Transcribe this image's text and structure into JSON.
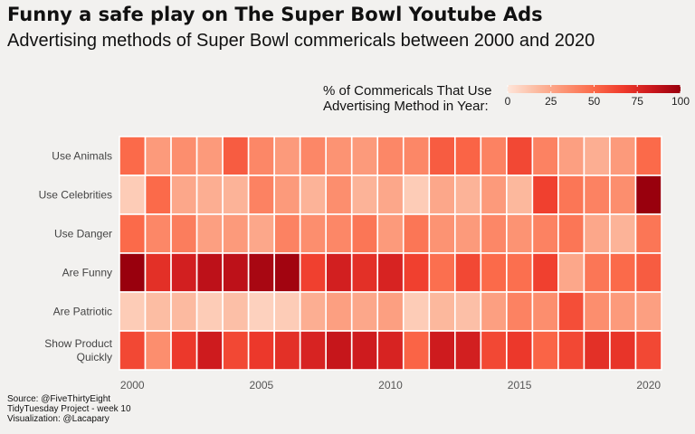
{
  "title": "Funny a safe play on The Super Bowl Youtube Ads",
  "subtitle": "Advertising methods of Super Bowl commericals between 2000 and 2020",
  "legend": {
    "title_line1": "% of Commericals That Use",
    "title_line2": "Advertising Method in Year:",
    "ticks": [
      0,
      25,
      50,
      75,
      100
    ],
    "colors": [
      "#fee5d9",
      "#fcbba1",
      "#fc9272",
      "#fb6a4a",
      "#ef3b2c",
      "#cb181d",
      "#99000d"
    ]
  },
  "caption": {
    "line1": "Source: @FiveThirtyEight",
    "line2": "TidyTuesday Project - week 10",
    "line3": "Visualization: @Lacapary"
  },
  "chart_data": {
    "type": "heatmap",
    "x": [
      2000,
      2001,
      2002,
      2003,
      2004,
      2005,
      2006,
      2007,
      2008,
      2009,
      2010,
      2011,
      2012,
      2013,
      2014,
      2015,
      2016,
      2017,
      2018,
      2019,
      2020
    ],
    "x_ticks": [
      2000,
      2005,
      2010,
      2015,
      2020
    ],
    "y": [
      "Use Animals",
      "Use Celebrities",
      "Use Danger",
      "Are Funny",
      "Are Patriotic",
      "Show Product Quickly"
    ],
    "y_display": [
      "Use Animals",
      "Use Celebrities",
      "Use Danger",
      "Are Funny",
      "Are Patriotic",
      "Show Product\nQuickly"
    ],
    "value_range": [
      0,
      100
    ],
    "values": [
      [
        50,
        30,
        35,
        30,
        55,
        38,
        30,
        38,
        33,
        30,
        38,
        38,
        55,
        52,
        40,
        62,
        40,
        28,
        22,
        30,
        50
      ],
      [
        10,
        50,
        25,
        22,
        20,
        40,
        30,
        20,
        35,
        20,
        25,
        10,
        25,
        20,
        30,
        18,
        65,
        45,
        40,
        35,
        100
      ],
      [
        50,
        38,
        42,
        28,
        30,
        25,
        40,
        35,
        38,
        45,
        30,
        45,
        33,
        30,
        38,
        33,
        40,
        45,
        25,
        20,
        45
      ],
      [
        100,
        72,
        80,
        88,
        88,
        95,
        97,
        65,
        80,
        72,
        78,
        65,
        48,
        62,
        50,
        48,
        65,
        25,
        45,
        50,
        55
      ],
      [
        10,
        16,
        17,
        10,
        15,
        8,
        10,
        22,
        28,
        25,
        28,
        10,
        18,
        15,
        28,
        40,
        35,
        60,
        35,
        30,
        28
      ],
      [
        62,
        35,
        68,
        82,
        62,
        68,
        72,
        78,
        85,
        82,
        78,
        52,
        82,
        80,
        62,
        68,
        52,
        62,
        72,
        70,
        62
      ]
    ]
  }
}
